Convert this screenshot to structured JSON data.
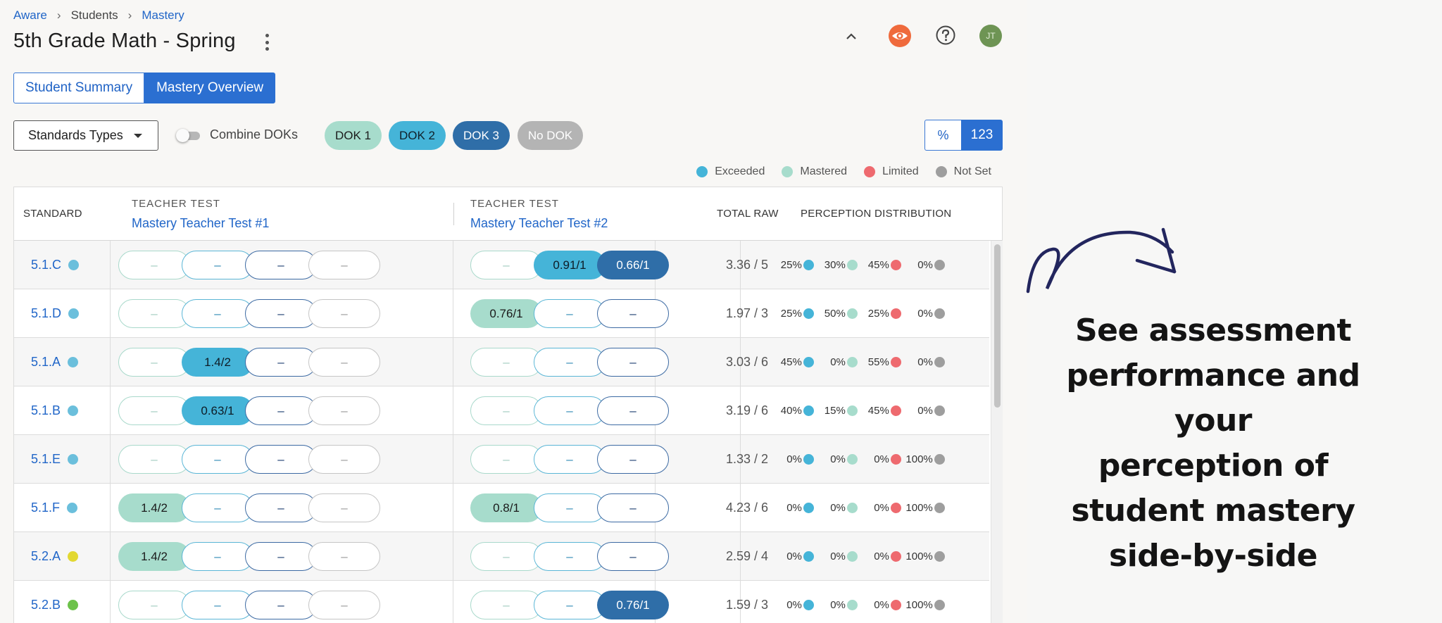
{
  "breadcrumb": {
    "home": "Aware",
    "section": "Students",
    "current": "Mastery"
  },
  "page": {
    "title": "5th Grade Math - Spring"
  },
  "user": {
    "initials": "JT"
  },
  "tabs": [
    {
      "label": "Student Summary",
      "active": false
    },
    {
      "label": "Mastery Overview",
      "active": true
    }
  ],
  "toolbar": {
    "standards_types_label": "Standards Types",
    "combine_doks_label": "Combine DOKs",
    "combine_doks_on": false,
    "dok_filters": [
      "DOK 1",
      "DOK 2",
      "DOK 3",
      "No DOK"
    ],
    "display_mode": {
      "percent_label": "%",
      "number_label": "123",
      "selected": "123"
    }
  },
  "legend": [
    {
      "label": "Exceeded",
      "color": "#45b4d8"
    },
    {
      "label": "Mastered",
      "color": "#a7dccc"
    },
    {
      "label": "Limited",
      "color": "#ee6a6f"
    },
    {
      "label": "Not Set",
      "color": "#9e9e9e"
    }
  ],
  "table": {
    "headers": {
      "standard": "STANDARD",
      "test1_type": "TEACHER TEST",
      "test1_name": "Mastery Teacher Test #1",
      "test2_type": "TEACHER TEST",
      "test2_name": "Mastery Teacher Test #2",
      "total_raw": "TOTAL RAW",
      "perception": "PERCEPTION DISTRIBUTION"
    },
    "rows": [
      {
        "standard": "5.1.C",
        "dot_color": "#6bbfdc",
        "t1": [
          "–",
          "–",
          "–",
          "–"
        ],
        "t2": [
          "–",
          "0.91/1",
          "0.66/1"
        ],
        "total": "3.36 / 5",
        "dist": [
          "25%",
          "30%",
          "45%",
          "0%"
        ]
      },
      {
        "standard": "5.1.D",
        "dot_color": "#6bbfdc",
        "t1": [
          "–",
          "–",
          "–",
          "–"
        ],
        "t2": [
          "0.76/1",
          "–",
          "–"
        ],
        "total": "1.97 / 3",
        "dist": [
          "25%",
          "50%",
          "25%",
          "0%"
        ]
      },
      {
        "standard": "5.1.A",
        "dot_color": "#6bbfdc",
        "t1": [
          "–",
          "1.4/2",
          "–",
          "–"
        ],
        "t2": [
          "–",
          "–",
          "–"
        ],
        "total": "3.03 / 6",
        "dist": [
          "45%",
          "0%",
          "55%",
          "0%"
        ]
      },
      {
        "standard": "5.1.B",
        "dot_color": "#6bbfdc",
        "t1": [
          "–",
          "0.63/1",
          "–",
          "–"
        ],
        "t2": [
          "–",
          "–",
          "–"
        ],
        "total": "3.19 / 6",
        "dist": [
          "40%",
          "15%",
          "45%",
          "0%"
        ]
      },
      {
        "standard": "5.1.E",
        "dot_color": "#6bbfdc",
        "t1": [
          "–",
          "–",
          "–",
          "–"
        ],
        "t2": [
          "–",
          "–",
          "–"
        ],
        "total": "1.33 / 2",
        "dist": [
          "0%",
          "0%",
          "0%",
          "100%"
        ]
      },
      {
        "standard": "5.1.F",
        "dot_color": "#6bbfdc",
        "t1": [
          "1.4/2",
          "–",
          "–",
          "–"
        ],
        "t2": [
          "0.8/1",
          "–",
          "–"
        ],
        "total": "4.23 / 6",
        "dist": [
          "0%",
          "0%",
          "0%",
          "100%"
        ]
      },
      {
        "standard": "5.2.A",
        "dot_color": "#e2d832",
        "t1": [
          "1.4/2",
          "–",
          "–",
          "–"
        ],
        "t2": [
          "–",
          "–",
          "–"
        ],
        "total": "2.59 / 4",
        "dist": [
          "0%",
          "0%",
          "0%",
          "100%"
        ]
      },
      {
        "standard": "5.2.B",
        "dot_color": "#6cc24a",
        "t1": [
          "–",
          "–",
          "–",
          "–"
        ],
        "t2": [
          "–",
          "–",
          "0.76/1"
        ],
        "total": "1.59 / 3",
        "dist": [
          "0%",
          "0%",
          "0%",
          "100%"
        ]
      }
    ]
  },
  "marketing": {
    "lines": [
      "See assessment",
      "performance and your",
      "perception of",
      "student mastery",
      "side-by-side"
    ]
  }
}
